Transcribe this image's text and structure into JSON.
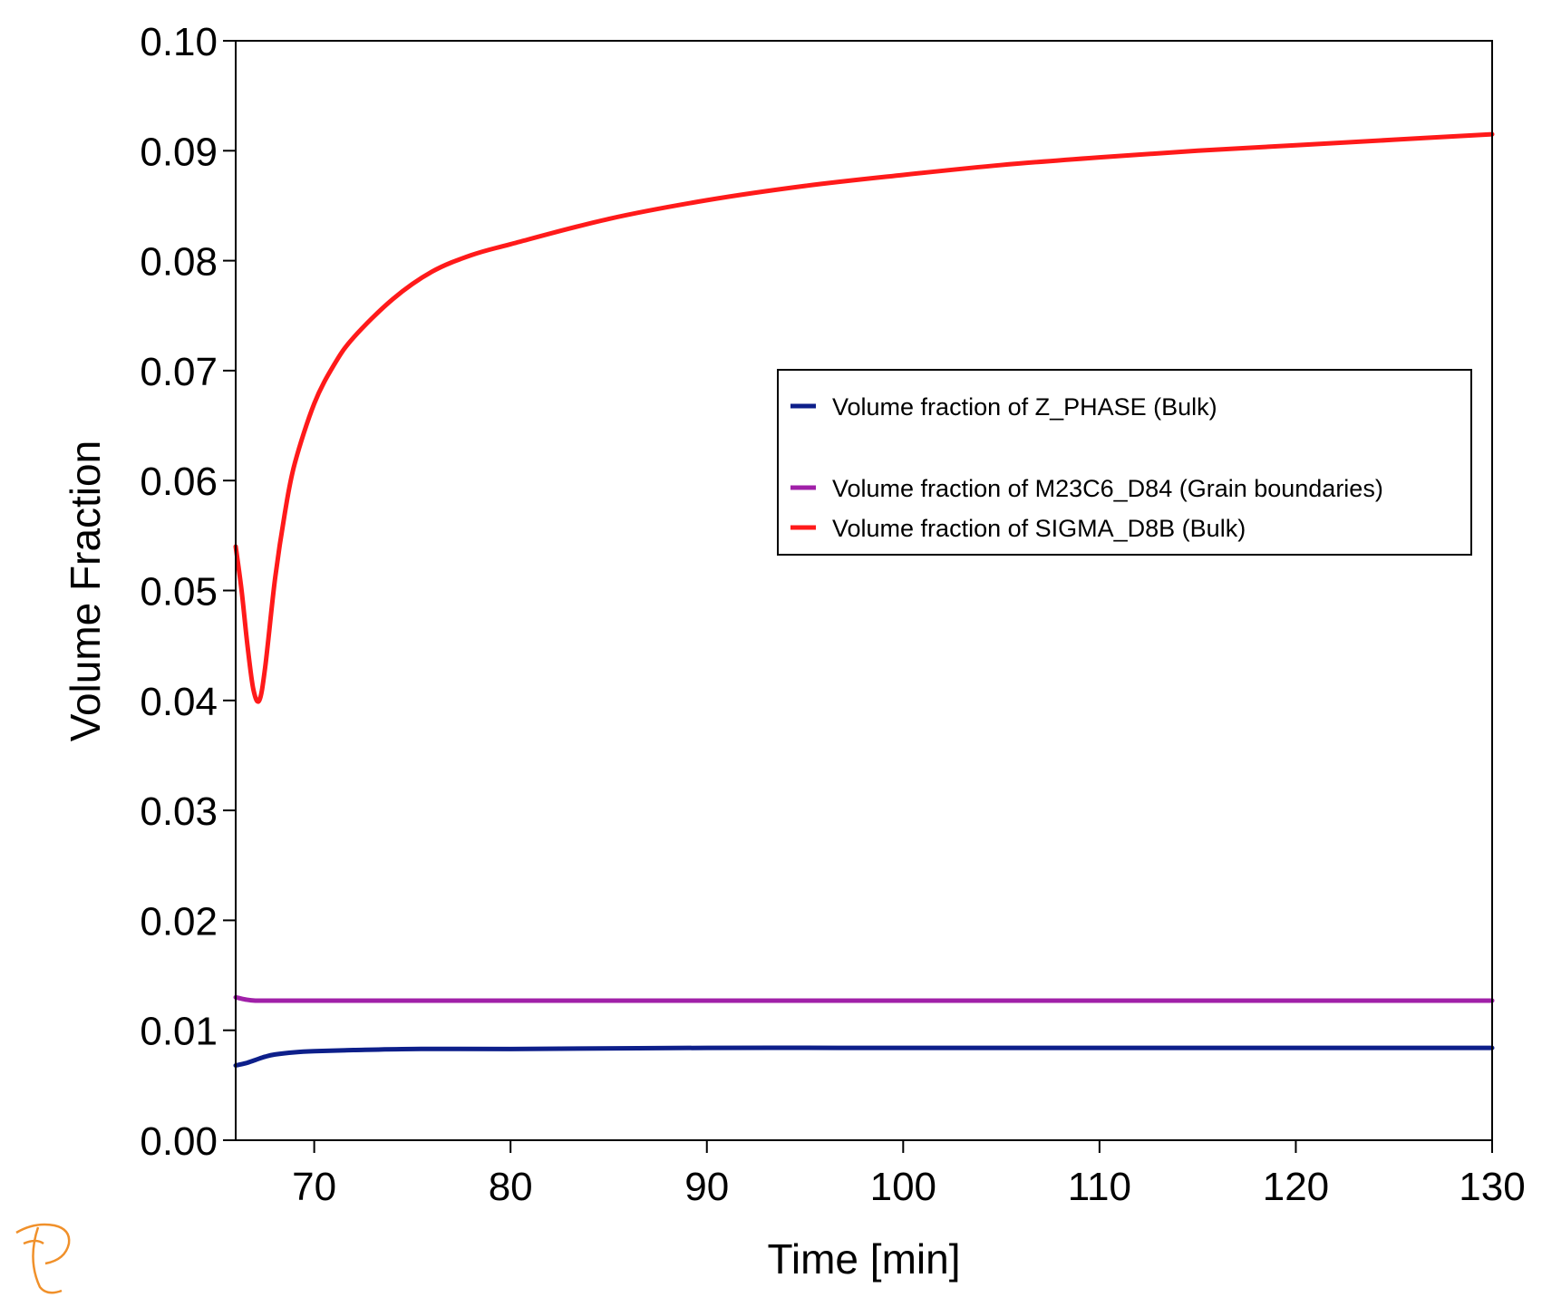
{
  "chart_data": {
    "type": "line",
    "xlabel": "Time [min]",
    "ylabel": "Volume Fraction",
    "xlim": [
      66,
      130
    ],
    "ylim": [
      0.0,
      0.1
    ],
    "xticks": [
      70,
      80,
      90,
      100,
      110,
      120,
      130
    ],
    "xtick_labels": [
      "70",
      "80",
      "90",
      "100",
      "110",
      "120",
      "130"
    ],
    "yticks": [
      0.0,
      0.01,
      0.02,
      0.03,
      0.04,
      0.05,
      0.06,
      0.07,
      0.08,
      0.09,
      0.1
    ],
    "ytick_labels": [
      "0.00",
      "0.01",
      "0.02",
      "0.03",
      "0.04",
      "0.05",
      "0.06",
      "0.07",
      "0.08",
      "0.09",
      "0.10"
    ],
    "grid": false,
    "legend_position": "right, upper-middle",
    "series": [
      {
        "name": "Volume fraction of Z_PHASE (Bulk)",
        "color": "#0d1f8a",
        "x": [
          66,
          66.5,
          67,
          67.5,
          68,
          69,
          70,
          72,
          75,
          80,
          90,
          100,
          110,
          120,
          130
        ],
        "y": [
          0.0068,
          0.007,
          0.0073,
          0.0076,
          0.0078,
          0.008,
          0.0081,
          0.0082,
          0.0083,
          0.0083,
          0.0084,
          0.0084,
          0.0084,
          0.0084,
          0.0084
        ]
      },
      {
        "name": "Volume fraction of M23C6_D84 (Grain boundaries)",
        "color": "#a020a8",
        "x": [
          66,
          66.5,
          67,
          68,
          70,
          80,
          90,
          100,
          110,
          120,
          130
        ],
        "y": [
          0.013,
          0.0128,
          0.0127,
          0.0127,
          0.0127,
          0.0127,
          0.0127,
          0.0127,
          0.0127,
          0.0127,
          0.0127
        ]
      },
      {
        "name": "Volume fraction of SIGMA_D8B (Bulk)",
        "color": "#ff1a1a",
        "x": [
          66,
          66.3,
          66.6,
          66.9,
          67.2,
          67.5,
          68,
          68.5,
          69,
          70,
          71,
          72,
          74,
          76,
          78,
          80,
          85,
          90,
          95,
          100,
          105,
          110,
          115,
          120,
          125,
          130
        ],
        "y": [
          0.054,
          0.05,
          0.045,
          0.041,
          0.04,
          0.043,
          0.051,
          0.057,
          0.0615,
          0.067,
          0.0705,
          0.073,
          0.0765,
          0.079,
          0.0805,
          0.0815,
          0.0838,
          0.0855,
          0.0868,
          0.0878,
          0.0887,
          0.0894,
          0.09,
          0.0905,
          0.091,
          0.0915
        ]
      }
    ]
  },
  "logo": {
    "name": "thermo-calc-logo"
  }
}
